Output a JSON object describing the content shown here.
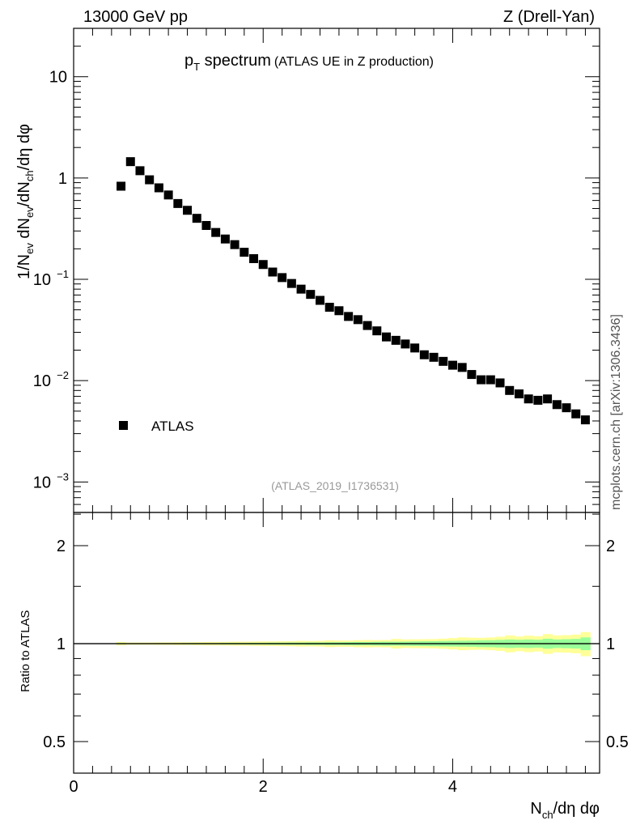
{
  "header": {
    "left": "13000 GeV pp",
    "right": "Z (Drell-Yan)"
  },
  "side_label": "mcplots.cern.ch [arXiv:1306.3436]",
  "colors": {
    "marker": "#000000",
    "inner_band": "#99ff99",
    "outer_band": "#ffff99",
    "ref_line": "#000000"
  },
  "chart_data": [
    {
      "type": "scatter",
      "title": {
        "main": "p",
        "main_sub": "T",
        "main_rest": " spectrum",
        "sub": "(ATLAS UE in Z production)"
      },
      "ylabel": {
        "p1": "1/N",
        "s1": "ev",
        "p2": " dN",
        "s2": "ev",
        "p3": "/dN",
        "s3": "ch",
        "p4": "/dη dφ"
      },
      "yscale": "log",
      "ylim": [
        0.0005,
        30
      ],
      "xlim": [
        0,
        5.55
      ],
      "yticks": [
        {
          "v": 10,
          "label": "10"
        },
        {
          "v": 1,
          "label": "1"
        },
        {
          "v": 0.1,
          "base": "10",
          "exp": "−1"
        },
        {
          "v": 0.01,
          "base": "10",
          "exp": "−2"
        },
        {
          "v": 0.001,
          "base": "10",
          "exp": "−3"
        }
      ],
      "legend": {
        "entries": [
          "ATLAS"
        ],
        "position": "lower-left"
      },
      "annotation": "(ATLAS_2019_I1736531)",
      "series": [
        {
          "name": "ATLAS",
          "x": [
            0.5,
            0.6,
            0.7,
            0.8,
            0.9,
            1.0,
            1.1,
            1.2,
            1.3,
            1.4,
            1.5,
            1.6,
            1.7,
            1.8,
            1.9,
            2.0,
            2.1,
            2.2,
            2.3,
            2.4,
            2.5,
            2.6,
            2.7,
            2.8,
            2.9,
            3.0,
            3.1,
            3.2,
            3.3,
            3.4,
            3.5,
            3.6,
            3.7,
            3.8,
            3.9,
            4.0,
            4.1,
            4.2,
            4.3,
            4.4,
            4.5,
            4.6,
            4.7,
            4.8,
            4.9,
            5.0,
            5.1,
            5.2,
            5.3,
            5.4
          ],
          "y": [
            0.83,
            1.45,
            1.18,
            0.96,
            0.8,
            0.68,
            0.56,
            0.48,
            0.4,
            0.34,
            0.29,
            0.25,
            0.22,
            0.185,
            0.16,
            0.14,
            0.118,
            0.104,
            0.091,
            0.08,
            0.071,
            0.062,
            0.053,
            0.049,
            0.043,
            0.04,
            0.035,
            0.031,
            0.027,
            0.025,
            0.023,
            0.021,
            0.018,
            0.017,
            0.0155,
            0.0142,
            0.0135,
            0.0115,
            0.0102,
            0.0102,
            0.0095,
            0.008,
            0.0074,
            0.0066,
            0.0064,
            0.0066,
            0.0058,
            0.0054,
            0.0047,
            0.0041
          ]
        }
      ]
    },
    {
      "type": "line",
      "ylabel": "Ratio to ATLAS",
      "xlabel": {
        "p1": "N",
        "s1": "ch",
        "p2": "/dη dφ"
      },
      "yscale": "log",
      "ylim": [
        0.4,
        2.53
      ],
      "xlim": [
        0,
        5.55
      ],
      "xticks": [
        {
          "v": 0,
          "label": "0"
        },
        {
          "v": 2,
          "label": "2"
        },
        {
          "v": 4,
          "label": "4"
        }
      ],
      "yticks": [
        {
          "v": 2,
          "label": "2"
        },
        {
          "v": 1,
          "label": "1"
        },
        {
          "v": 0.5,
          "label": "0.5"
        }
      ],
      "reference": 1,
      "bin_width": 0.1,
      "inner_rel_err": [
        0.004,
        0.003,
        0.003,
        0.003,
        0.003,
        0.003,
        0.003,
        0.004,
        0.004,
        0.004,
        0.004,
        0.005,
        0.005,
        0.005,
        0.006,
        0.006,
        0.007,
        0.007,
        0.008,
        0.008,
        0.009,
        0.009,
        0.01,
        0.01,
        0.011,
        0.012,
        0.012,
        0.013,
        0.014,
        0.014,
        0.015,
        0.016,
        0.017,
        0.018,
        0.019,
        0.02,
        0.021,
        0.022,
        0.024,
        0.025,
        0.027,
        0.03,
        0.028,
        0.03,
        0.028,
        0.035,
        0.03,
        0.032,
        0.034,
        0.045
      ],
      "outer_rel_err": [
        0.012,
        0.008,
        0.008,
        0.008,
        0.009,
        0.009,
        0.01,
        0.01,
        0.011,
        0.012,
        0.012,
        0.013,
        0.014,
        0.014,
        0.015,
        0.016,
        0.016,
        0.017,
        0.018,
        0.02,
        0.019,
        0.02,
        0.024,
        0.022,
        0.022,
        0.025,
        0.026,
        0.025,
        0.026,
        0.034,
        0.03,
        0.031,
        0.032,
        0.033,
        0.036,
        0.04,
        0.045,
        0.043,
        0.042,
        0.045,
        0.05,
        0.06,
        0.052,
        0.058,
        0.054,
        0.07,
        0.06,
        0.062,
        0.066,
        0.085
      ]
    }
  ]
}
